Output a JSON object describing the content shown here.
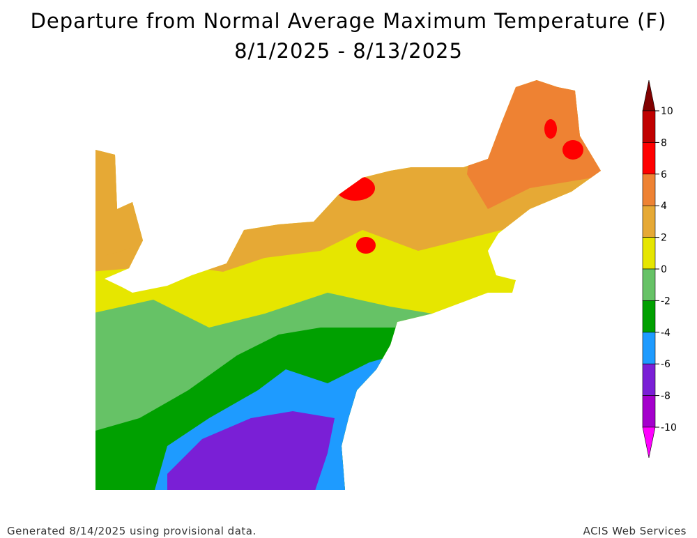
{
  "title": "Departure from Normal Average Maximum Temperature (F)",
  "subtitle": "8/1/2025 - 8/13/2025",
  "legend": {
    "ticks": [
      10,
      8,
      6,
      4,
      2,
      0,
      -2,
      -4,
      -6,
      -8,
      -10
    ],
    "colors": [
      "#800000",
      "#c00000",
      "#ff0000",
      "#ee8233",
      "#e6a935",
      "#e6e600",
      "#66c266",
      "#00a000",
      "#1e9bff",
      "#7a1fd6",
      "#a400cc",
      "#ff00ff"
    ]
  },
  "footer_left": "Generated 8/14/2025 using provisional data.",
  "footer_right": "ACIS Web Services"
}
